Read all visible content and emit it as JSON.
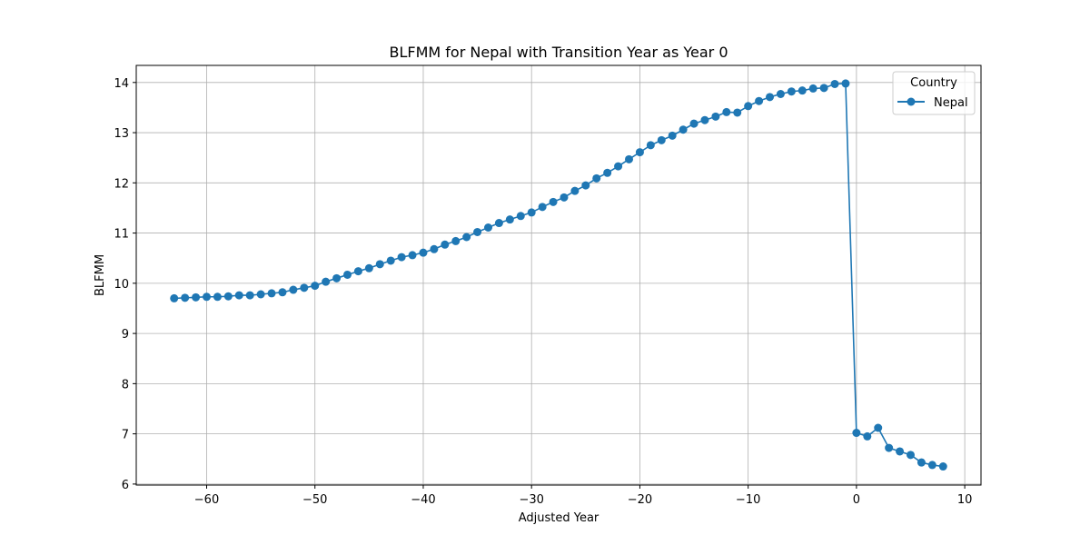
{
  "chart_data": {
    "type": "line",
    "title": "BLFMM for Nepal with Transition Year as Year 0",
    "xlabel": "Adjusted Year",
    "ylabel": "BLFMM",
    "xlim": [
      -66.5,
      11.5
    ],
    "ylim": [
      5.98,
      14.34
    ],
    "xticks": [
      -60,
      -50,
      -40,
      -30,
      -20,
      -10,
      0,
      10
    ],
    "yticks": [
      6,
      7,
      8,
      9,
      10,
      11,
      12,
      13,
      14
    ],
    "grid": true,
    "marker": "circle",
    "legend": {
      "title": "Country",
      "placement": "top-right"
    },
    "series": [
      {
        "name": "Nepal",
        "color": "#1f77b4",
        "x": [
          -63,
          -62,
          -61,
          -60,
          -59,
          -58,
          -57,
          -56,
          -55,
          -54,
          -53,
          -52,
          -51,
          -50,
          -49,
          -48,
          -47,
          -46,
          -45,
          -44,
          -43,
          -42,
          -41,
          -40,
          -39,
          -38,
          -37,
          -36,
          -35,
          -34,
          -33,
          -32,
          -31,
          -30,
          -29,
          -28,
          -27,
          -26,
          -25,
          -24,
          -23,
          -22,
          -21,
          -20,
          -19,
          -18,
          -17,
          -16,
          -15,
          -14,
          -13,
          -12,
          -11,
          -10,
          -9,
          -8,
          -7,
          -6,
          -5,
          -4,
          -3,
          -2,
          -1,
          0,
          1,
          2,
          3,
          4,
          5,
          6,
          7,
          8
        ],
        "y": [
          9.7,
          9.71,
          9.72,
          9.73,
          9.73,
          9.74,
          9.76,
          9.76,
          9.78,
          9.8,
          9.82,
          9.87,
          9.91,
          9.95,
          10.03,
          10.1,
          10.17,
          10.24,
          10.3,
          10.38,
          10.45,
          10.52,
          10.56,
          10.61,
          10.68,
          10.77,
          10.84,
          10.92,
          11.02,
          11.11,
          11.2,
          11.27,
          11.34,
          11.41,
          11.52,
          11.62,
          11.71,
          11.84,
          11.95,
          12.09,
          12.2,
          12.33,
          12.47,
          12.61,
          12.75,
          12.85,
          12.94,
          13.06,
          13.18,
          13.25,
          13.32,
          13.41,
          13.4,
          13.53,
          13.63,
          13.71,
          13.77,
          13.82,
          13.84,
          13.88,
          13.89,
          13.97,
          13.98,
          7.02,
          6.95,
          7.12,
          6.72,
          6.65,
          6.58,
          6.43,
          6.38,
          6.35
        ]
      }
    ]
  }
}
